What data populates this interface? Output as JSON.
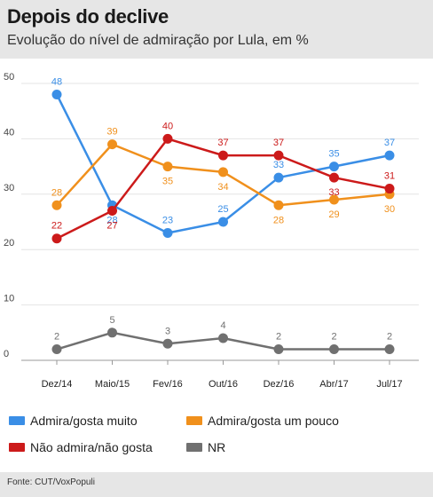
{
  "header": {
    "title": "Depois do declive",
    "subtitle": "Evolução do nível de admiração por Lula, em %"
  },
  "footer": {
    "source": "Fonte: CUT/VoxPopuli"
  },
  "chart_data": {
    "type": "line",
    "title": "Depois do declive",
    "subtitle": "Evolução do nível de admiração por Lula, em %",
    "xlabel": "",
    "ylabel": "",
    "categories": [
      "Dez/14",
      "Maio/15",
      "Fev/16",
      "Out/16",
      "Dez/16",
      "Abr/17",
      "Jul/17"
    ],
    "ylim": [
      0,
      50
    ],
    "yticks": [
      0,
      10,
      20,
      30,
      40,
      50
    ],
    "grid": true,
    "legend_placement": "bottom",
    "series": [
      {
        "name": "Admira/gosta muito",
        "color": "#3a8ee6",
        "values": [
          48,
          28,
          23,
          25,
          33,
          35,
          37
        ]
      },
      {
        "name": "Admira/gosta um pouco",
        "color": "#f0901c",
        "values": [
          28,
          39,
          35,
          34,
          28,
          29,
          30
        ]
      },
      {
        "name": "Não admira/não gosta",
        "color": "#cc1a1a",
        "values": [
          22,
          27,
          40,
          37,
          37,
          33,
          31
        ]
      },
      {
        "name": "NR",
        "color": "#707070",
        "values": [
          2,
          5,
          3,
          4,
          2,
          2,
          2
        ]
      }
    ]
  }
}
